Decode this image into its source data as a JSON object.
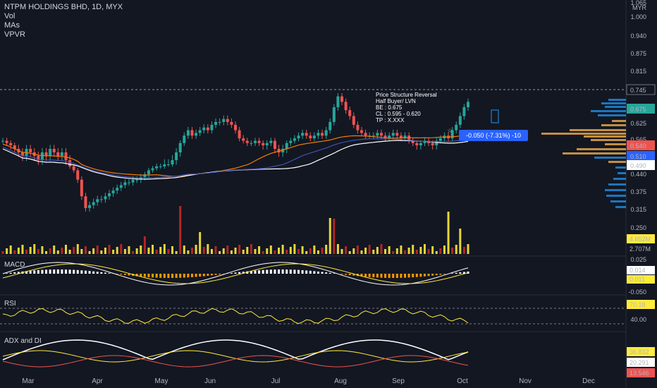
{
  "header": {
    "title": "NTPM HOLDINGS BHD, 1D, MYX",
    "indicators": [
      "Vol",
      "MAs",
      "VPVR"
    ]
  },
  "annotation": {
    "lines": [
      "Price Structure Reversal",
      "Half Buyer/ LVN",
      "BE : 0.675",
      "CL : 0.595 - 0.620",
      "TP : X.XXX"
    ]
  },
  "position": {
    "label": "-0.050 (-7.31%) -10"
  },
  "panes": {
    "macd": {
      "title": "MACD",
      "labels": [
        "0.025",
        "0.014",
        "0.011",
        "-0.050"
      ]
    },
    "rsi": {
      "title": "RSI",
      "labels": [
        "70.18",
        "40.00"
      ]
    },
    "adx": {
      "title": "ADX and DI",
      "labels": [
        "36.832",
        "20.291",
        "13.546"
      ]
    }
  },
  "volume_labels": [
    "4.652M",
    "2.707M"
  ],
  "colors": {
    "bg": "#131722",
    "up": "#26a69a",
    "down": "#ef5350",
    "accent": "#2962ff",
    "ma_orange": "#f57c00",
    "ma_white": "#ffffff",
    "ma_blue": "#3f51b5",
    "vol_yellow": "#ffeb3b",
    "vol_red": "#c62828",
    "vpvr_blue": "#2196f3",
    "vpvr_orange": "#ffb74d"
  },
  "chart_data": {
    "type": "candlestick",
    "title": "NTPM HOLDINGS BHD, 1D, MYX",
    "currency": "MYR",
    "y_ticks": [
      1.065,
      1.0,
      0.94,
      0.875,
      0.815,
      0.745,
      0.68,
      0.625,
      0.565,
      0.54,
      0.51,
      0.49,
      0.44,
      0.375,
      0.315,
      0.25
    ],
    "price_labels": [
      {
        "text": "0.745",
        "style": "dark"
      },
      {
        "text": "0.675",
        "style": "teal"
      },
      {
        "text": "0.540",
        "style": "red"
      },
      {
        "text": "0.510",
        "style": "blue"
      },
      {
        "text": "0.490",
        "style": "white"
      }
    ],
    "x_labels": [
      "Mar",
      "Apr",
      "May",
      "Jun",
      "Jul",
      "Aug",
      "Sep",
      "Oct",
      "Nov",
      "Dec"
    ],
    "close_series": [
      0.56,
      0.55,
      0.54,
      0.53,
      0.52,
      0.51,
      0.53,
      0.52,
      0.51,
      0.5,
      0.52,
      0.51,
      0.53,
      0.52,
      0.51,
      0.52,
      0.5,
      0.48,
      0.46,
      0.42,
      0.36,
      0.32,
      0.33,
      0.34,
      0.35,
      0.35,
      0.36,
      0.37,
      0.38,
      0.39,
      0.4,
      0.41,
      0.41,
      0.42,
      0.42,
      0.43,
      0.44,
      0.46,
      0.47,
      0.48,
      0.48,
      0.49,
      0.49,
      0.5,
      0.52,
      0.55,
      0.58,
      0.6,
      0.58,
      0.59,
      0.6,
      0.61,
      0.6,
      0.62,
      0.63,
      0.63,
      0.64,
      0.63,
      0.62,
      0.6,
      0.57,
      0.56,
      0.55,
      0.55,
      0.56,
      0.55,
      0.54,
      0.55,
      0.56,
      0.53,
      0.52,
      0.53,
      0.55,
      0.56,
      0.57,
      0.58,
      0.59,
      0.58,
      0.57,
      0.58,
      0.59,
      0.58,
      0.6,
      0.63,
      0.68,
      0.72,
      0.7,
      0.67,
      0.65,
      0.62,
      0.6,
      0.59,
      0.58,
      0.58,
      0.58,
      0.59,
      0.58,
      0.57,
      0.58,
      0.59,
      0.58,
      0.57,
      0.58,
      0.56,
      0.55,
      0.54,
      0.55,
      0.56,
      0.55,
      0.54,
      0.56,
      0.57,
      0.58,
      0.57,
      0.6,
      0.62,
      0.65,
      0.68,
      0.7
    ]
  }
}
